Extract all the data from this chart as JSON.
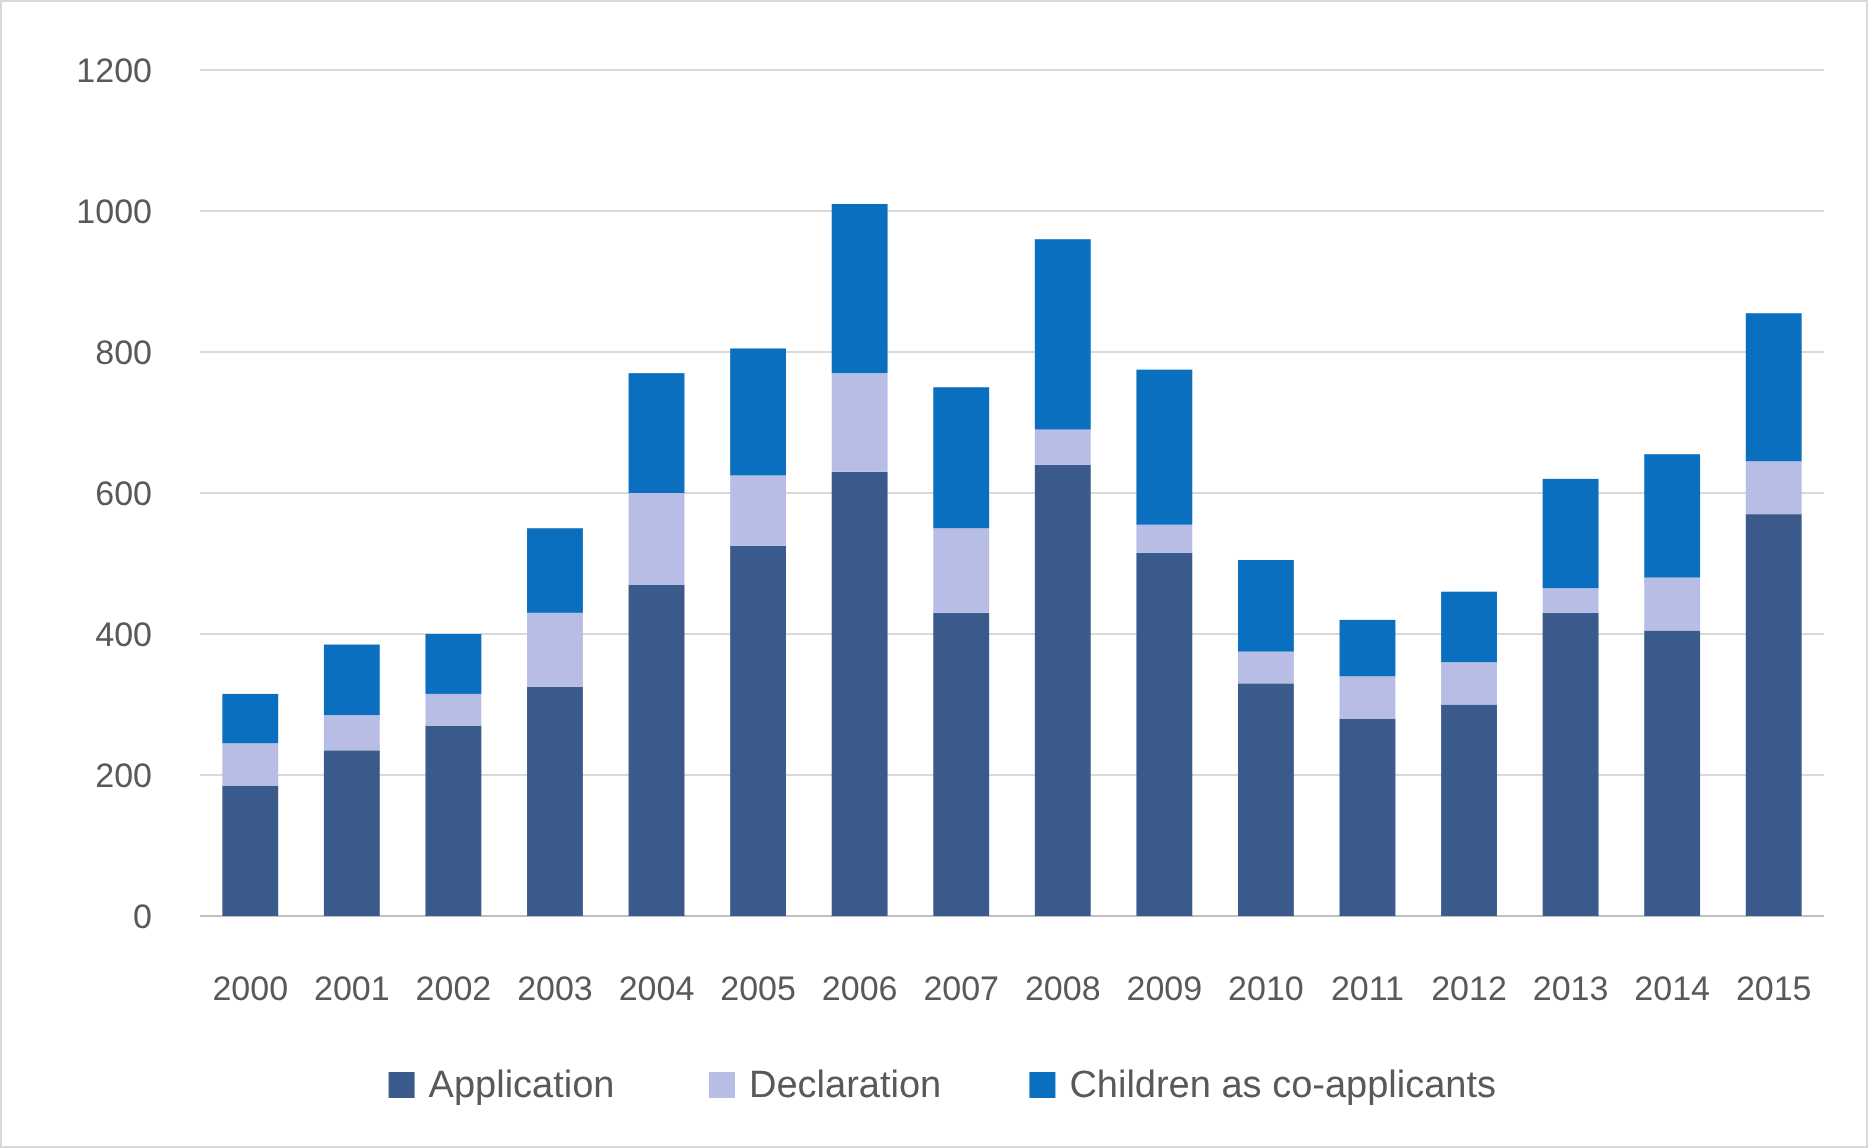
{
  "chart_data": {
    "type": "bar",
    "stacked": true,
    "categories": [
      "2000",
      "2001",
      "2002",
      "2003",
      "2004",
      "2005",
      "2006",
      "2007",
      "2008",
      "2009",
      "2010",
      "2011",
      "2012",
      "2013",
      "2014",
      "2015"
    ],
    "series": [
      {
        "name": "Application",
        "color": "#3a5a8c",
        "values": [
          185,
          235,
          270,
          325,
          470,
          525,
          630,
          430,
          640,
          515,
          330,
          280,
          300,
          430,
          405,
          570
        ]
      },
      {
        "name": "Declaration",
        "color": "#b8bde6",
        "values": [
          60,
          50,
          45,
          105,
          130,
          100,
          140,
          120,
          50,
          40,
          45,
          60,
          60,
          35,
          75,
          75
        ]
      },
      {
        "name": "Children as co-applicants",
        "color": "#0a6fbf",
        "values": [
          70,
          100,
          85,
          120,
          170,
          180,
          240,
          200,
          270,
          220,
          130,
          80,
          100,
          155,
          175,
          210
        ]
      }
    ],
    "ylim": [
      0,
      1200
    ],
    "yticks": [
      0,
      200,
      400,
      600,
      800,
      1000,
      1200
    ],
    "grid": "y",
    "legend": "bottom"
  }
}
